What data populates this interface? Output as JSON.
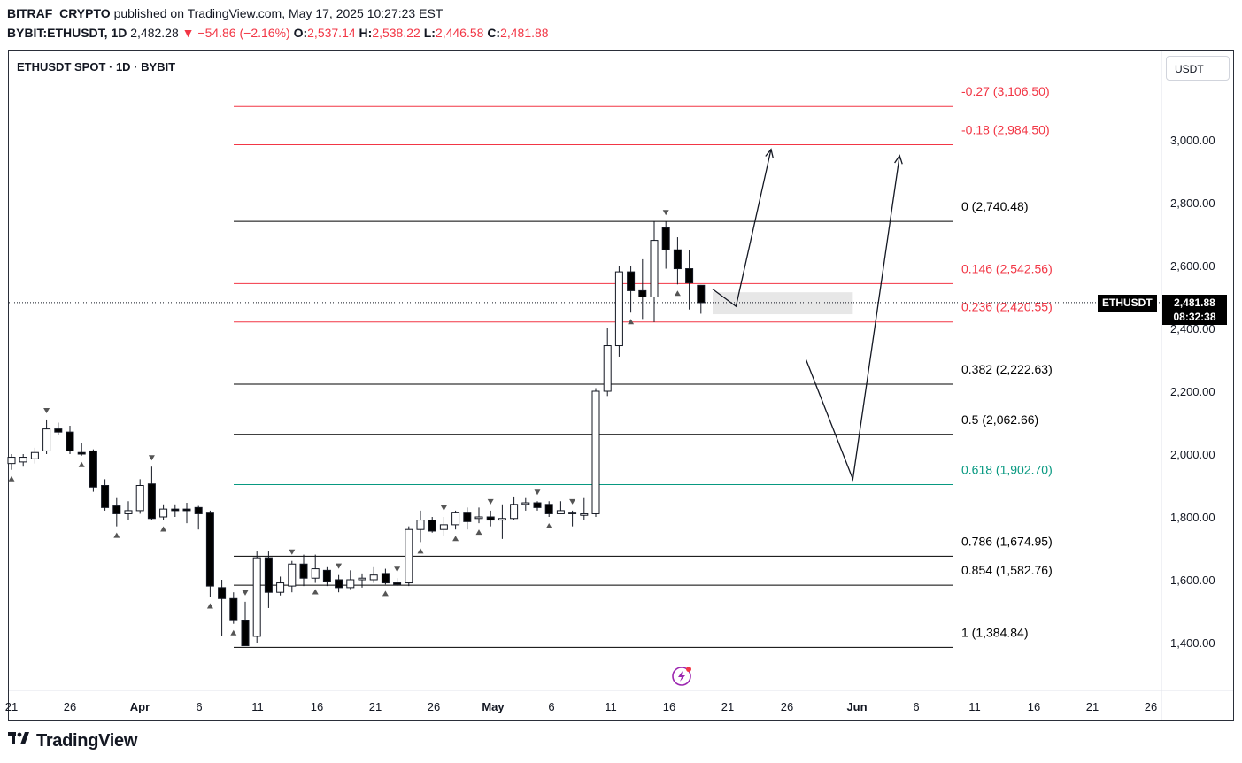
{
  "header": {
    "author": "BITRAF_CRYPTO",
    "published_text": "published on TradingView.com, May 17, 2025 10:27:23 EST",
    "symbol_full": "BYBIT:ETHUSDT, 1D",
    "last_price": "2,482.28",
    "change": "▼ −54.86 (−2.16%)",
    "o_label": "O:",
    "o_value": "2,537.14",
    "h_label": "H:",
    "h_value": "2,538.22",
    "l_label": "L:",
    "l_value": "2,446.58",
    "c_label": "C:",
    "c_value": "2,481.88"
  },
  "chart_title": "ETHUSDT SPOT · 1D · BYBIT",
  "currency_button": "USDT",
  "price_tag": {
    "symbol": "ETHUSDT",
    "price": "2,481.88",
    "countdown": "08:32:38"
  },
  "brand": {
    "name": "TradingView",
    "icon": "tradingview-logo-icon"
  },
  "colors": {
    "up": "#ffffff",
    "down": "#000000",
    "fib_red": "#f23645",
    "fib_teal": "#089981",
    "fib_black": "#000000"
  },
  "chart_data": {
    "type": "candlestick",
    "y_axis": {
      "ylim": [
        1260,
        3200
      ],
      "ticks": [
        1400,
        1600,
        1800,
        2000,
        2200,
        2400,
        2600,
        2800,
        3000
      ],
      "tick_labels": [
        "1,400.00",
        "1,600.00",
        "1,800.00",
        "2,000.00",
        "2,200.00",
        "2,400.00",
        "2,600.00",
        "2,800.00",
        "3,000.00"
      ]
    },
    "x_axis": {
      "tick_labels": [
        "21",
        "26",
        "Apr",
        "6",
        "11",
        "16",
        "21",
        "26",
        "May",
        "6",
        "11",
        "16",
        "21",
        "26",
        "Jun",
        "6",
        "11",
        "16",
        "21",
        "26"
      ]
    },
    "candles": [
      {
        "o": 1970,
        "h": 2000,
        "l": 1950,
        "c": 1990
      },
      {
        "o": 1975,
        "h": 2000,
        "l": 1960,
        "c": 1990
      },
      {
        "o": 1985,
        "h": 2020,
        "l": 1970,
        "c": 2005
      },
      {
        "o": 2010,
        "h": 2110,
        "l": 2000,
        "c": 2080
      },
      {
        "o": 2080,
        "h": 2100,
        "l": 2060,
        "c": 2070
      },
      {
        "o": 2070,
        "h": 2090,
        "l": 2000,
        "c": 2010
      },
      {
        "o": 2005,
        "h": 2035,
        "l": 1995,
        "c": 2000
      },
      {
        "o": 2010,
        "h": 2015,
        "l": 1880,
        "c": 1895
      },
      {
        "o": 1900,
        "h": 1920,
        "l": 1820,
        "c": 1830
      },
      {
        "o": 1835,
        "h": 1860,
        "l": 1770,
        "c": 1810
      },
      {
        "o": 1810,
        "h": 1850,
        "l": 1790,
        "c": 1820
      },
      {
        "o": 1820,
        "h": 1920,
        "l": 1810,
        "c": 1900
      },
      {
        "o": 1905,
        "h": 1960,
        "l": 1790,
        "c": 1795
      },
      {
        "o": 1800,
        "h": 1840,
        "l": 1790,
        "c": 1825
      },
      {
        "o": 1825,
        "h": 1840,
        "l": 1800,
        "c": 1820
      },
      {
        "o": 1825,
        "h": 1845,
        "l": 1780,
        "c": 1820
      },
      {
        "o": 1830,
        "h": 1835,
        "l": 1760,
        "c": 1810
      },
      {
        "o": 1815,
        "h": 1820,
        "l": 1545,
        "c": 1580
      },
      {
        "o": 1575,
        "h": 1600,
        "l": 1420,
        "c": 1540
      },
      {
        "o": 1540,
        "h": 1560,
        "l": 1460,
        "c": 1470
      },
      {
        "o": 1470,
        "h": 1530,
        "l": 1400,
        "c": 1390
      },
      {
        "o": 1420,
        "h": 1690,
        "l": 1400,
        "c": 1670
      },
      {
        "o": 1670,
        "h": 1690,
        "l": 1510,
        "c": 1560
      },
      {
        "o": 1560,
        "h": 1610,
        "l": 1550,
        "c": 1590
      },
      {
        "o": 1580,
        "h": 1660,
        "l": 1560,
        "c": 1650
      },
      {
        "o": 1650,
        "h": 1680,
        "l": 1580,
        "c": 1605
      },
      {
        "o": 1605,
        "h": 1680,
        "l": 1590,
        "c": 1635
      },
      {
        "o": 1630,
        "h": 1640,
        "l": 1580,
        "c": 1595
      },
      {
        "o": 1600,
        "h": 1615,
        "l": 1560,
        "c": 1575
      },
      {
        "o": 1575,
        "h": 1630,
        "l": 1570,
        "c": 1600
      },
      {
        "o": 1600,
        "h": 1620,
        "l": 1575,
        "c": 1605
      },
      {
        "o": 1600,
        "h": 1640,
        "l": 1590,
        "c": 1615
      },
      {
        "o": 1620,
        "h": 1635,
        "l": 1585,
        "c": 1590
      },
      {
        "o": 1590,
        "h": 1605,
        "l": 1580,
        "c": 1585
      },
      {
        "o": 1590,
        "h": 1770,
        "l": 1580,
        "c": 1760
      },
      {
        "o": 1760,
        "h": 1820,
        "l": 1720,
        "c": 1790
      },
      {
        "o": 1790,
        "h": 1800,
        "l": 1750,
        "c": 1755
      },
      {
        "o": 1760,
        "h": 1800,
        "l": 1740,
        "c": 1775
      },
      {
        "o": 1775,
        "h": 1820,
        "l": 1760,
        "c": 1815
      },
      {
        "o": 1815,
        "h": 1830,
        "l": 1760,
        "c": 1785
      },
      {
        "o": 1795,
        "h": 1830,
        "l": 1780,
        "c": 1800
      },
      {
        "o": 1800,
        "h": 1820,
        "l": 1770,
        "c": 1790
      },
      {
        "o": 1790,
        "h": 1840,
        "l": 1730,
        "c": 1795
      },
      {
        "o": 1795,
        "h": 1865,
        "l": 1790,
        "c": 1840
      },
      {
        "o": 1840,
        "h": 1860,
        "l": 1820,
        "c": 1845
      },
      {
        "o": 1845,
        "h": 1850,
        "l": 1820,
        "c": 1830
      },
      {
        "o": 1840,
        "h": 1850,
        "l": 1800,
        "c": 1810
      },
      {
        "o": 1810,
        "h": 1850,
        "l": 1810,
        "c": 1820
      },
      {
        "o": 1810,
        "h": 1820,
        "l": 1770,
        "c": 1815
      },
      {
        "o": 1805,
        "h": 1860,
        "l": 1790,
        "c": 1810
      },
      {
        "o": 1810,
        "h": 2210,
        "l": 1800,
        "c": 2200
      },
      {
        "o": 2200,
        "h": 2400,
        "l": 2185,
        "c": 2345
      },
      {
        "o": 2345,
        "h": 2600,
        "l": 2310,
        "c": 2580
      },
      {
        "o": 2580,
        "h": 2600,
        "l": 2450,
        "c": 2520
      },
      {
        "o": 2520,
        "h": 2620,
        "l": 2430,
        "c": 2500
      },
      {
        "o": 2500,
        "h": 2740,
        "l": 2420,
        "c": 2680
      },
      {
        "o": 2720,
        "h": 2740,
        "l": 2590,
        "c": 2650
      },
      {
        "o": 2650,
        "h": 2690,
        "l": 2540,
        "c": 2590
      },
      {
        "o": 2590,
        "h": 2650,
        "l": 2460,
        "c": 2545
      },
      {
        "o": 2537.14,
        "h": 2538.22,
        "l": 2446.58,
        "c": 2481.88
      }
    ],
    "fib_levels": [
      {
        "ratio": "-0.27",
        "price": 3106.5,
        "label": "-0.27 (3,106.50)",
        "color": "red"
      },
      {
        "ratio": "-0.18",
        "price": 2984.5,
        "label": "-0.18 (2,984.50)",
        "color": "red"
      },
      {
        "ratio": "0",
        "price": 2740.48,
        "label": "0 (2,740.48)",
        "color": "black"
      },
      {
        "ratio": "0.146",
        "price": 2542.56,
        "label": "0.146 (2,542.56)",
        "color": "red"
      },
      {
        "ratio": "0.236",
        "price": 2420.55,
        "label": "0.236 (2,420.55)",
        "color": "red"
      },
      {
        "ratio": "0.382",
        "price": 2222.63,
        "label": "0.382 (2,222.63)",
        "color": "black"
      },
      {
        "ratio": "0.5",
        "price": 2062.66,
        "label": "0.5 (2,062.66)",
        "color": "black"
      },
      {
        "ratio": "0.618",
        "price": 1902.7,
        "label": "0.618 (1,902.70)",
        "color": "teal"
      },
      {
        "ratio": "0.786",
        "price": 1674.95,
        "label": "0.786 (1,674.95)",
        "color": "black"
      },
      {
        "ratio": "0.854",
        "price": 1582.76,
        "label": "0.854 (1,582.76)",
        "color": "black"
      },
      {
        "ratio": "1",
        "price": 1384.84,
        "label": "1 (1,384.84)",
        "color": "black"
      }
    ],
    "projection_paths": [
      {
        "name": "short-path",
        "points": [
          {
            "bar": 60,
            "p": 2525
          },
          {
            "bar": 62,
            "p": 2470
          },
          {
            "bar": 65,
            "p": 2970
          }
        ]
      },
      {
        "name": "long-path",
        "points": [
          {
            "bar": 68,
            "p": 2300
          },
          {
            "bar": 72,
            "p": 1920
          },
          {
            "bar": 76,
            "p": 2950
          }
        ]
      }
    ],
    "highlight_box": {
      "bar_from": 60,
      "bar_to": 72,
      "p_from": 2445,
      "p_to": 2515
    },
    "current_price": 2481.88,
    "grid": false
  }
}
